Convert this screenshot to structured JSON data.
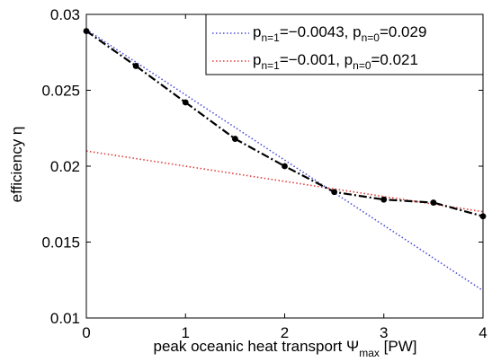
{
  "chart_data": {
    "type": "line",
    "xlabel": {
      "main": "peak oceanic heat transport Ψ",
      "sub": "max",
      "unit": " [PW]"
    },
    "ylabel": "efficiency η",
    "xlim": [
      0,
      4
    ],
    "ylim": [
      0.01,
      0.03
    ],
    "xticks": [
      0,
      1,
      2,
      3,
      4
    ],
    "xtick_labels": [
      "0",
      "1",
      "2",
      "3",
      "4"
    ],
    "yticks": [
      0.01,
      0.015,
      0.02,
      0.025,
      0.03
    ],
    "ytick_labels": [
      "0.01",
      "0.015",
      "0.02",
      "0.025",
      "0.03"
    ],
    "grid": false,
    "legend_position": "top-right",
    "series": [
      {
        "style": "black dash-dot with dots",
        "color": "#000000",
        "x": [
          0,
          0.5,
          1,
          1.5,
          2,
          2.5,
          3,
          3.5,
          4
        ],
        "y": [
          0.0289,
          0.0266,
          0.0242,
          0.0218,
          0.02,
          0.0183,
          0.0178,
          0.0176,
          0.0167
        ]
      },
      {
        "legend": {
          "a_sub": "n=1",
          "a_val": "=−0.0043, p",
          "b_sub": "n=0",
          "b_val": "=0.029"
        },
        "color": "#4d4dd9",
        "style": "dotted",
        "intercept": 0.029,
        "slope": -0.0043,
        "x": [
          0,
          4
        ],
        "y": [
          0.029,
          0.0118
        ]
      },
      {
        "legend": {
          "a_sub": "n=1",
          "a_val": "=−0.001, p",
          "b_sub": "n=0",
          "b_val": "=0.021"
        },
        "color": "#e03b3b",
        "style": "dotted",
        "intercept": 0.021,
        "slope": -0.001,
        "x": [
          0,
          4
        ],
        "y": [
          0.021,
          0.017
        ]
      }
    ]
  }
}
